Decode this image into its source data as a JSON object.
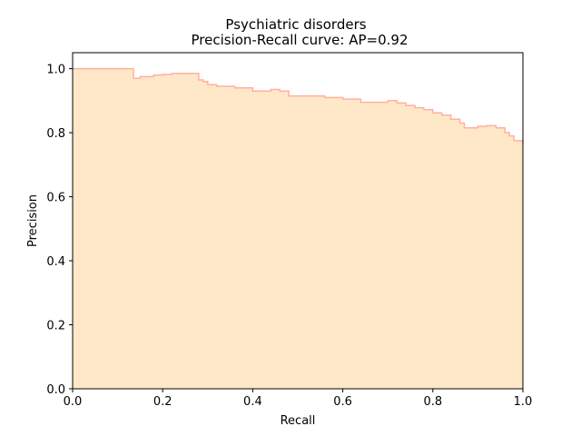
{
  "chart_data": {
    "type": "area",
    "title": "Psychiatric disorders",
    "subtitle": "Precision-Recall curve: AP=0.92",
    "xlabel": "Recall",
    "ylabel": "Precision",
    "xlim": [
      0.0,
      1.0
    ],
    "ylim": [
      0.0,
      1.05
    ],
    "x_ticks": [
      0.0,
      0.2,
      0.4,
      0.6,
      0.8,
      1.0
    ],
    "y_ticks": [
      0.0,
      0.2,
      0.4,
      0.6,
      0.8,
      1.0
    ],
    "x_tick_labels": [
      "0.0",
      "0.2",
      "0.4",
      "0.6",
      "0.8",
      "1.0"
    ],
    "y_tick_labels": [
      "0.0",
      "0.2",
      "0.4",
      "0.6",
      "0.8",
      "1.0"
    ],
    "grid": false,
    "fill_color": "#ffe8c8",
    "line_color": "#ffb0a0",
    "series": [
      {
        "step": "post",
        "recall": [
          0.0,
          0.135,
          0.15,
          0.18,
          0.2,
          0.22,
          0.28,
          0.29,
          0.3,
          0.32,
          0.36,
          0.4,
          0.44,
          0.46,
          0.48,
          0.52,
          0.56,
          0.6,
          0.64,
          0.66,
          0.7,
          0.72,
          0.74,
          0.76,
          0.78,
          0.8,
          0.82,
          0.84,
          0.86,
          0.87,
          0.9,
          0.92,
          0.94,
          0.96,
          0.97,
          0.98,
          1.0
        ],
        "precision": [
          1.0,
          0.97,
          0.975,
          0.98,
          0.982,
          0.985,
          0.965,
          0.96,
          0.95,
          0.945,
          0.94,
          0.93,
          0.935,
          0.93,
          0.915,
          0.915,
          0.91,
          0.905,
          0.895,
          0.895,
          0.9,
          0.893,
          0.885,
          0.878,
          0.872,
          0.862,
          0.855,
          0.842,
          0.83,
          0.815,
          0.82,
          0.822,
          0.815,
          0.8,
          0.79,
          0.775,
          0.765
        ]
      }
    ]
  }
}
